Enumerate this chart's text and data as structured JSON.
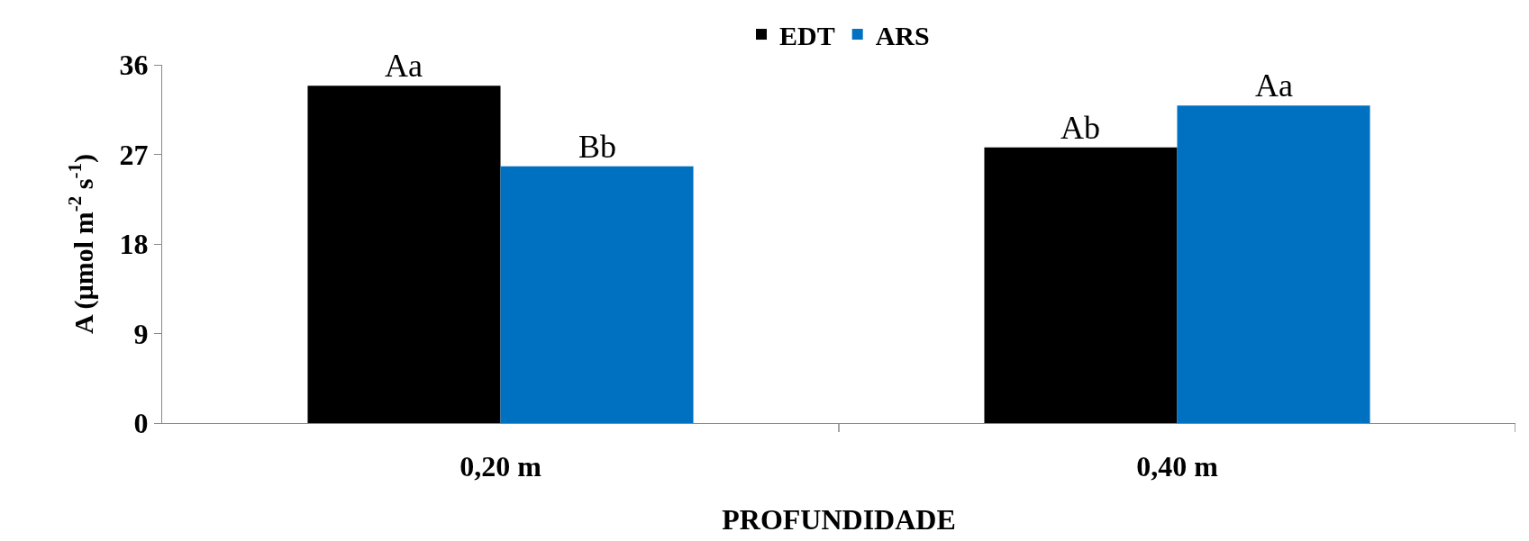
{
  "chart_data": {
    "type": "bar",
    "xlabel": "PROFUNDIDADE",
    "ylabel": "A (µmol m$^{-2}$ s$^{-1}$)",
    "categories": [
      "0,20 m",
      "0,40 m"
    ],
    "series": [
      {
        "name": "EDT",
        "color": "#000000",
        "values": [
          33.9,
          27.7
        ]
      },
      {
        "name": "ARS",
        "color": "#0070c0",
        "values": [
          25.8,
          31.9
        ]
      }
    ],
    "ylim": [
      0,
      36
    ],
    "yticks": [
      0,
      9,
      18,
      27,
      36
    ],
    "grid": false,
    "legend": "top",
    "annotations": [
      {
        "text": "Aa",
        "x": "0,20 m",
        "y": 33.9
      },
      {
        "text": "Bb",
        "x": "0,20 m",
        "y": 25.8
      },
      {
        "text": "Ab",
        "x": "0,40 m",
        "y": 27.7
      },
      {
        "text": "Aa",
        "x": "0,40 m",
        "y": 31.9
      }
    ]
  }
}
